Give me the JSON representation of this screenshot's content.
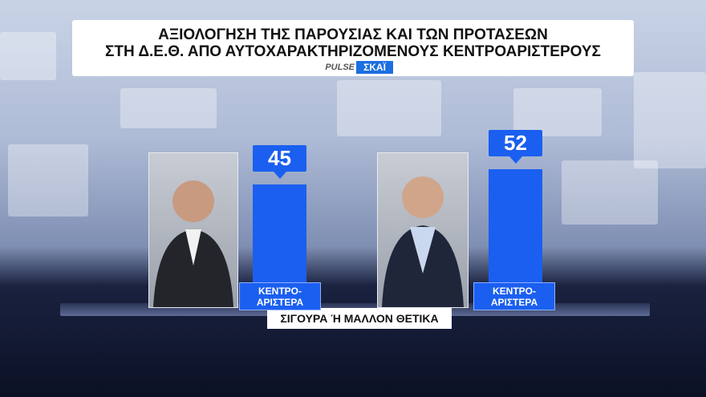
{
  "chart_data": {
    "type": "bar",
    "title": [
      "ΑΞΙΟΛΟΓΗΣΗ ΤΗΣ ΠΑΡΟΥΣΙΑΣ ΚΑΙ ΤΩΝ ΠΡΟΤΑΣΕΩΝ",
      "ΣΤΗ Δ.Ε.Θ. ΑΠΟ ΑΥΤΟΧΑΡΑΚΤΗΡΙΖΟΜΕΝΟΥΣ ΚΕΝΤΡΟΑΡΙΣΤΕΡΟΥΣ"
    ],
    "logos": [
      "PULSE",
      "ΣΚΑΪ"
    ],
    "categories": [
      "ΚΕΝΤΡΟ-ΑΡΙΣΤΕΡΑ",
      "ΚΕΝΤΡΟ-ΑΡΙΣΤΕΡΑ"
    ],
    "values": [
      45,
      52
    ],
    "color": "#1b5ff0",
    "footer": "ΣΙΓΟΥΡΑ Ή ΜΑΛΛΟΝ ΘΕΤΙΚΑ"
  }
}
